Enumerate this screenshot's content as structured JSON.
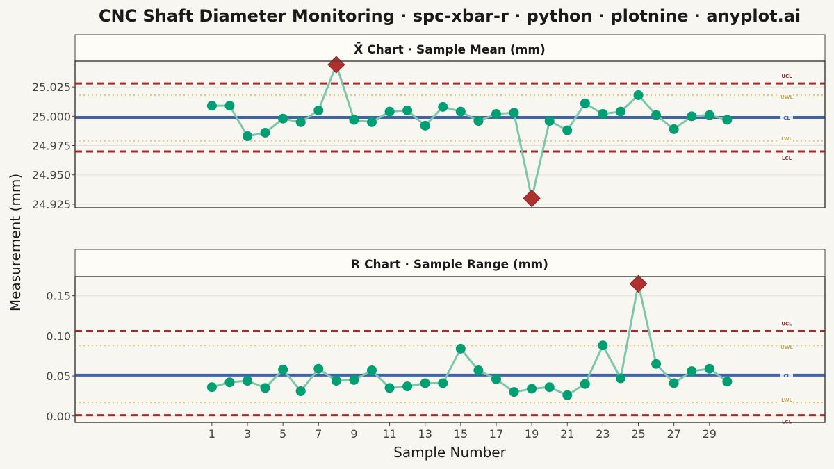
{
  "title": "CNC Shaft Diameter Monitoring · spc-xbar-r · python · plotnine · anyplot.ai",
  "xlabel": "Sample Number",
  "ylabel": "Measurement (mm)",
  "colors": {
    "background": "#F8F6F0",
    "panel": "#F8F6F0",
    "strip": "#FDFCF6",
    "series_line": "#7DC6AC",
    "point": "#009E73",
    "violation": "#B03030",
    "center_line": "#3F63A8",
    "control_limit": "#A52A2A",
    "warning_limit": "#E4CB7A"
  },
  "chart_data": [
    {
      "type": "line",
      "panel_title": "X̄ Chart · Sample Mean (mm)",
      "x": [
        1,
        2,
        3,
        4,
        5,
        6,
        7,
        8,
        9,
        10,
        11,
        12,
        13,
        14,
        15,
        16,
        17,
        18,
        19,
        20,
        21,
        22,
        23,
        24,
        25,
        26,
        27,
        28,
        29,
        30
      ],
      "values": [
        25.009,
        25.009,
        24.983,
        24.986,
        24.998,
        24.995,
        25.005,
        25.044,
        24.997,
        24.995,
        25.004,
        25.005,
        24.992,
        25.008,
        25.004,
        24.996,
        25.002,
        25.003,
        24.93,
        24.996,
        24.988,
        25.011,
        25.002,
        25.004,
        25.018,
        25.001,
        24.989,
        25.0,
        25.001,
        24.997
      ],
      "violations": [
        8,
        19
      ],
      "ylim": [
        24.922,
        25.047
      ],
      "yticks": [
        24.925,
        24.95,
        24.975,
        25.0,
        25.025
      ],
      "ytick_labels": [
        "24.925",
        "24.950",
        "24.975",
        "25.000",
        "25.025"
      ],
      "limits": [
        {
          "name": "UCL",
          "value": 25.028,
          "style": "control"
        },
        {
          "name": "UWL",
          "value": 25.018,
          "style": "warning"
        },
        {
          "name": "CL",
          "value": 24.999,
          "style": "center"
        },
        {
          "name": "LWL",
          "value": 24.979,
          "style": "warning"
        },
        {
          "name": "LCL",
          "value": 24.97,
          "style": "control"
        }
      ]
    },
    {
      "type": "line",
      "panel_title": "R Chart · Sample Range (mm)",
      "x": [
        1,
        2,
        3,
        4,
        5,
        6,
        7,
        8,
        9,
        10,
        11,
        12,
        13,
        14,
        15,
        16,
        17,
        18,
        19,
        20,
        21,
        22,
        23,
        24,
        25,
        26,
        27,
        28,
        29,
        30
      ],
      "values": [
        0.036,
        0.042,
        0.044,
        0.035,
        0.058,
        0.031,
        0.059,
        0.044,
        0.045,
        0.057,
        0.035,
        0.037,
        0.041,
        0.041,
        0.084,
        0.057,
        0.046,
        0.03,
        0.034,
        0.036,
        0.026,
        0.04,
        0.088,
        0.047,
        0.165,
        0.065,
        0.041,
        0.056,
        0.059,
        0.043
      ],
      "violations": [
        25
      ],
      "ylim": [
        -0.008,
        0.174
      ],
      "yticks": [
        0.0,
        0.05,
        0.1,
        0.15
      ],
      "ytick_labels": [
        "0.00",
        "0.05",
        "0.10",
        "0.15"
      ],
      "limits": [
        {
          "name": "UCL",
          "value": 0.106,
          "style": "control"
        },
        {
          "name": "UWL",
          "value": 0.088,
          "style": "warning"
        },
        {
          "name": "CL",
          "value": 0.051,
          "style": "center"
        },
        {
          "name": "LWL",
          "value": 0.017,
          "style": "warning"
        },
        {
          "name": "LCL",
          "value": 0.001,
          "style": "control"
        }
      ]
    }
  ],
  "xaxis": {
    "xlim": [
      -6.7,
      35.5
    ],
    "ticks": [
      1,
      3,
      5,
      7,
      9,
      11,
      13,
      15,
      17,
      19,
      21,
      23,
      25,
      27,
      29
    ],
    "tick_labels": [
      "1",
      "3",
      "5",
      "7",
      "9",
      "11",
      "13",
      "15",
      "17",
      "19",
      "21",
      "23",
      "25",
      "27",
      "29"
    ]
  }
}
